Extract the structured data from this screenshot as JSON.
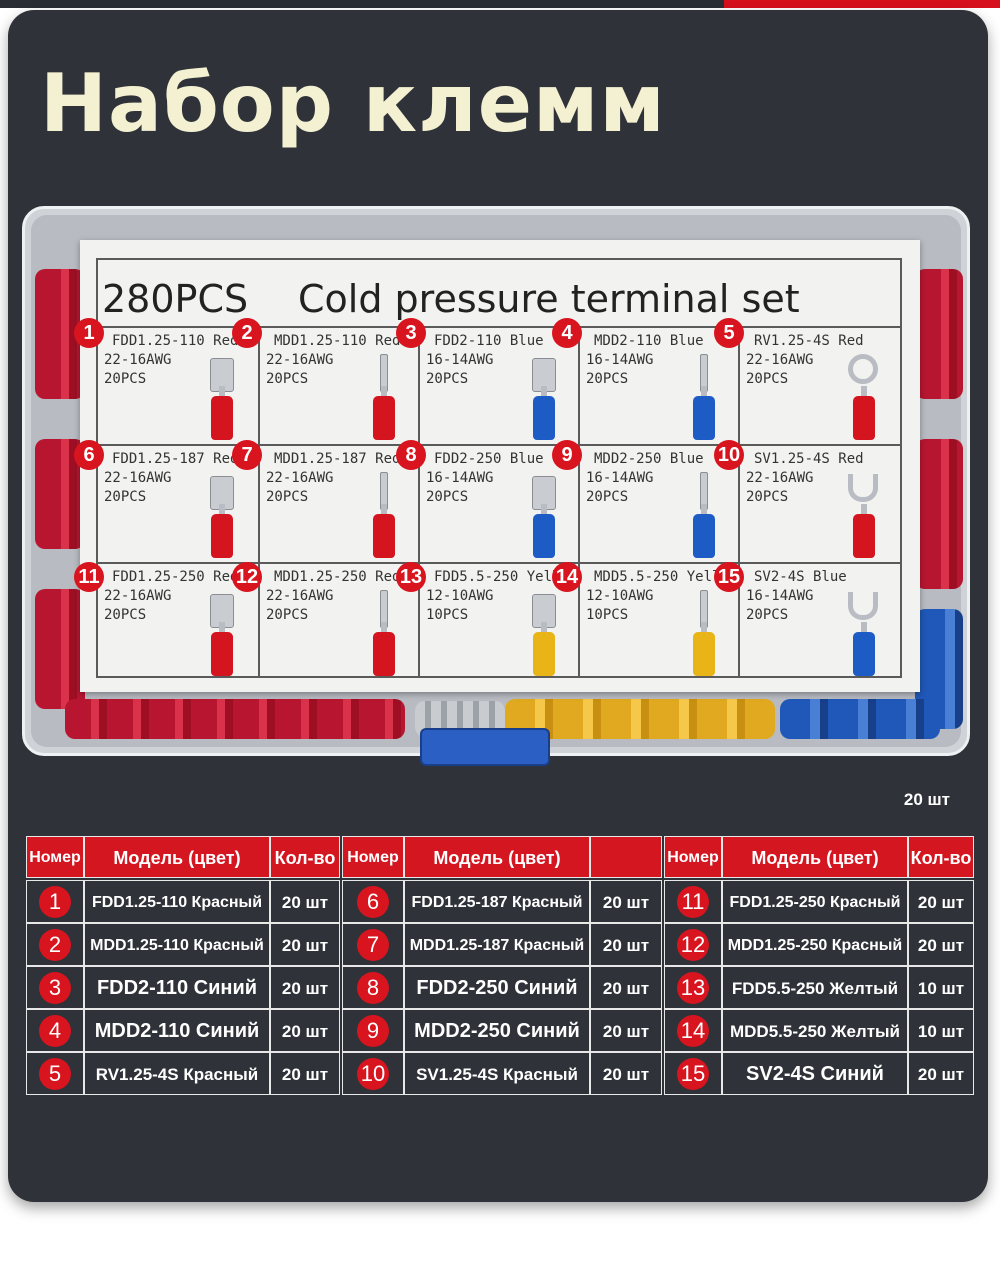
{
  "title": "Набор клемм",
  "box_card": {
    "heading_count": "280PCS",
    "heading_text": "Cold pressure terminal set",
    "cells": [
      {
        "n": "1",
        "model": "FDD1.25-110",
        "color": "Red",
        "awg": "22-16AWG",
        "pcs": "20PCS",
        "type": "flag",
        "fill": "#d4141f"
      },
      {
        "n": "2",
        "model": "MDD1.25-110",
        "color": "Red",
        "awg": "22-16AWG",
        "pcs": "20PCS",
        "type": "pin",
        "fill": "#d4141f"
      },
      {
        "n": "3",
        "model": "FDD2-110",
        "color": "Blue",
        "awg": "16-14AWG",
        "pcs": "20PCS",
        "type": "flag",
        "fill": "#1d5cc4"
      },
      {
        "n": "4",
        "model": "MDD2-110",
        "color": "Blue",
        "awg": "16-14AWG",
        "pcs": "20PCS",
        "type": "pin",
        "fill": "#1d5cc4"
      },
      {
        "n": "5",
        "model": "RV1.25-4S",
        "color": "Red",
        "awg": "22-16AWG",
        "pcs": "20PCS",
        "type": "ring",
        "fill": "#d4141f"
      },
      {
        "n": "6",
        "model": "FDD1.25-187",
        "color": "Red",
        "awg": "22-16AWG",
        "pcs": "20PCS",
        "type": "flag",
        "fill": "#d4141f"
      },
      {
        "n": "7",
        "model": "MDD1.25-187",
        "color": "Red",
        "awg": "22-16AWG",
        "pcs": "20PCS",
        "type": "pin",
        "fill": "#d4141f"
      },
      {
        "n": "8",
        "model": "FDD2-250",
        "color": "Blue",
        "awg": "16-14AWG",
        "pcs": "20PCS",
        "type": "flag",
        "fill": "#1d5cc4"
      },
      {
        "n": "9",
        "model": "MDD2-250",
        "color": "Blue",
        "awg": "16-14AWG",
        "pcs": "20PCS",
        "type": "pin",
        "fill": "#1d5cc4"
      },
      {
        "n": "10",
        "model": "SV1.25-4S",
        "color": "Red",
        "awg": "22-16AWG",
        "pcs": "20PCS",
        "type": "fork",
        "fill": "#d4141f"
      },
      {
        "n": "11",
        "model": "FDD1.25-250",
        "color": "Red",
        "awg": "22-16AWG",
        "pcs": "20PCS",
        "type": "flag",
        "fill": "#d4141f"
      },
      {
        "n": "12",
        "model": "MDD1.25-250",
        "color": "Red",
        "awg": "22-16AWG",
        "pcs": "20PCS",
        "type": "pin",
        "fill": "#d4141f"
      },
      {
        "n": "13",
        "model": "FDD5.5-250",
        "color": "Yellow",
        "awg": "12-10AWG",
        "pcs": "10PCS",
        "type": "flag",
        "fill": "#e8b417"
      },
      {
        "n": "14",
        "model": "MDD5.5-250",
        "color": "Yellow",
        "awg": "12-10AWG",
        "pcs": "10PCS",
        "type": "pin",
        "fill": "#e8b417"
      },
      {
        "n": "15",
        "model": "SV2-4S",
        "color": "Blue",
        "awg": "16-14AWG",
        "pcs": "20PCS",
        "type": "fork",
        "fill": "#1d5cc4"
      }
    ]
  },
  "note": "20 шт",
  "table": {
    "headers": [
      [
        "Номер",
        "Модель (цвет)",
        "Кол-во"
      ],
      [
        "Номер",
        "Модель (цвет)",
        ""
      ],
      [
        "Номер",
        "Модель (цвет)",
        "Кол-во"
      ]
    ],
    "columns": [
      [
        {
          "n": "1",
          "model": "FDD1.25-110 Красный",
          "qty": "20 шт"
        },
        {
          "n": "2",
          "model": "MDD1.25-110 Красный",
          "qty": "20 шт"
        },
        {
          "n": "3",
          "model": "FDD2-110 Синий",
          "qty": "20 шт"
        },
        {
          "n": "4",
          "model": "MDD2-110 Синий",
          "qty": "20 шт"
        },
        {
          "n": "5",
          "model": "RV1.25-4S Красный",
          "qty": "20 шт"
        }
      ],
      [
        {
          "n": "6",
          "model": "FDD1.25-187 Красный",
          "qty": "20 шт"
        },
        {
          "n": "7",
          "model": "MDD1.25-187 Красный",
          "qty": "20 шт"
        },
        {
          "n": "8",
          "model": "FDD2-250 Синий",
          "qty": "20 шт"
        },
        {
          "n": "9",
          "model": "MDD2-250 Синий",
          "qty": "20 шт"
        },
        {
          "n": "10",
          "model": "SV1.25-4S Красный",
          "qty": "20 шт"
        }
      ],
      [
        {
          "n": "11",
          "model": "FDD1.25-250 Красный",
          "qty": "20 шт"
        },
        {
          "n": "12",
          "model": "MDD1.25-250 Красный",
          "qty": "20 шт"
        },
        {
          "n": "13",
          "model": "FDD5.5-250 Желтый",
          "qty": "10 шт"
        },
        {
          "n": "14",
          "model": "MDD5.5-250 Желтый",
          "qty": "10 шт"
        },
        {
          "n": "15",
          "model": "SV2-4S Синий",
          "qty": "20 шт"
        }
      ]
    ]
  },
  "colors": {
    "background": "#2f3238",
    "accent_red": "#d31620",
    "title_text": "#f4f1d2"
  }
}
